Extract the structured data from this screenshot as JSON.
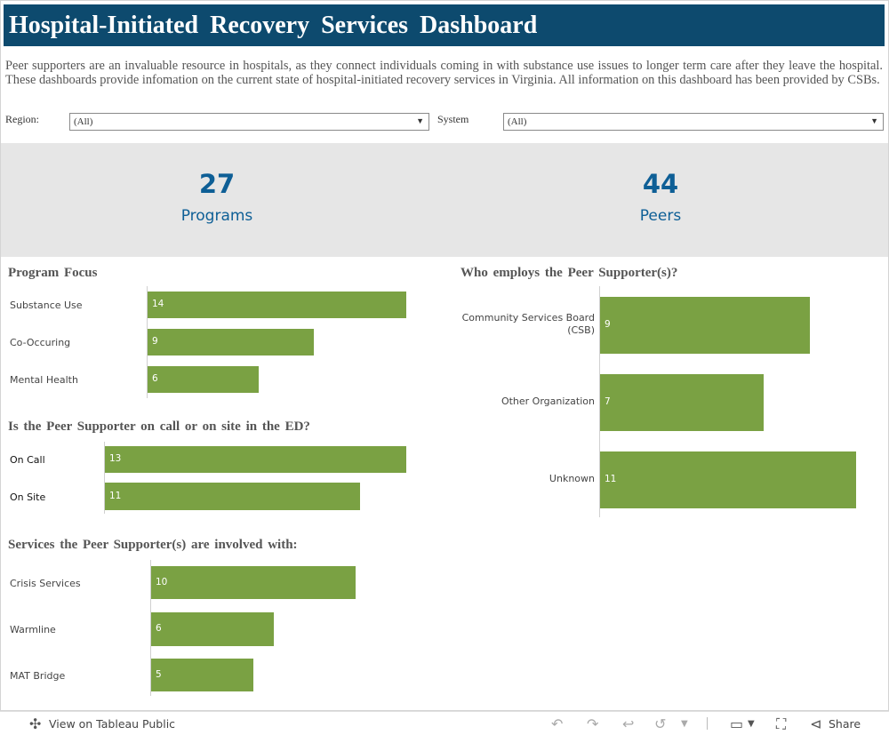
{
  "header": {
    "title": "Hospital-Initiated Recovery Services Dashboard"
  },
  "intro": "Peer supporters are an invaluable resource in hospitals, as they connect individuals coming in with substance use issues to longer term care after they leave the hospital. These dashboards provide infomation on the current state of hospital-initiated recovery services in Virginia. All information on this dashboard has been provided by CSBs.",
  "filters": {
    "region": {
      "label": "Region:",
      "value": "(All)"
    },
    "system": {
      "label": "System",
      "value": "(All)"
    }
  },
  "kpis": {
    "programs": {
      "value": "27",
      "label": "Programs"
    },
    "peers": {
      "value": "44",
      "label": "Peers"
    }
  },
  "chart_data": [
    {
      "type": "bar",
      "title": "Program Focus",
      "orientation": "horizontal",
      "categories": [
        "Substance Use",
        "Co-Occuring",
        "Mental Health"
      ],
      "values": [
        14,
        9,
        6
      ],
      "labels": [
        "14",
        "9",
        "6"
      ],
      "color": "#7aa143"
    },
    {
      "type": "bar",
      "title": "Is the Peer Supporter on call or on site in the ED?",
      "orientation": "horizontal",
      "categories": [
        "On Call",
        "On Site"
      ],
      "values": [
        13,
        11
      ],
      "labels": [
        "13",
        "11"
      ],
      "color": "#7aa143"
    },
    {
      "type": "bar",
      "title": "Services the Peer Supporter(s) are involved with:",
      "orientation": "horizontal",
      "categories": [
        "Crisis Services",
        "Warmline",
        "MAT Bridge"
      ],
      "values": [
        10,
        6,
        5
      ],
      "labels": [
        "10",
        "6",
        "5"
      ],
      "color": "#7aa143"
    },
    {
      "type": "bar",
      "title": "Who employs the Peer Supporter(s)?",
      "orientation": "horizontal",
      "categories": [
        "Community Services Board (CSB)",
        "Other Organization",
        "Unknown"
      ],
      "category_lines": [
        [
          "Community Services Board",
          "(CSB)"
        ],
        [
          "Other Organization"
        ],
        [
          "Unknown"
        ]
      ],
      "values": [
        9,
        7,
        11
      ],
      "labels": [
        "9",
        "7",
        "11"
      ],
      "color": "#7aa143"
    }
  ],
  "footer": {
    "view_label": "View on Tableau Public",
    "share_label": "Share",
    "icons": [
      "tableau-icon",
      "undo-icon",
      "redo-icon",
      "revert-icon",
      "refresh-icon",
      "download-icon",
      "fullscreen-icon",
      "share-icon"
    ]
  }
}
